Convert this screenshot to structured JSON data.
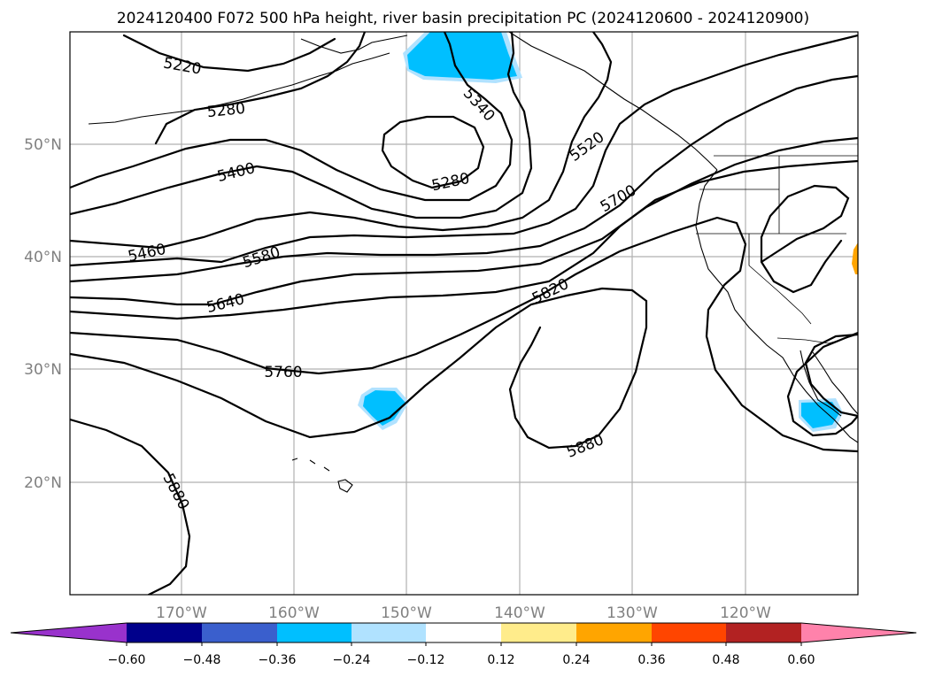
{
  "title": "2024120400 F072 500 hPa height, river basin precipitation PC (2024120600 - 2024120900)",
  "lat_labels": [
    "50°N",
    "40°N",
    "30°N",
    "20°N"
  ],
  "lon_labels": [
    "170°W",
    "160°W",
    "150°W",
    "140°W",
    "130°W",
    "120°W"
  ],
  "contour_labels": [
    "5220",
    "5280",
    "5340",
    "5400",
    "5280",
    "5520",
    "5700",
    "5460",
    "5580",
    "5640",
    "5820",
    "5760",
    "5880",
    "5880"
  ],
  "colorbar": {
    "ticks": [
      "−0.60",
      "−0.48",
      "−0.36",
      "−0.24",
      "−0.12",
      "0.12",
      "0.24",
      "0.36",
      "0.48",
      "0.60"
    ],
    "colors": [
      "#9932cc",
      "#00008b",
      "#3a5fcd",
      "#00bfff",
      "#b0e2ff",
      "#ffffff",
      "#ffec8b",
      "#ffa500",
      "#ff4500",
      "#b22222",
      "#ff82ab",
      "#ff82ab"
    ]
  },
  "precip_colors": {
    "light": "#b0e2ff",
    "medium": "#00bfff",
    "warm": "#ffa500"
  }
}
